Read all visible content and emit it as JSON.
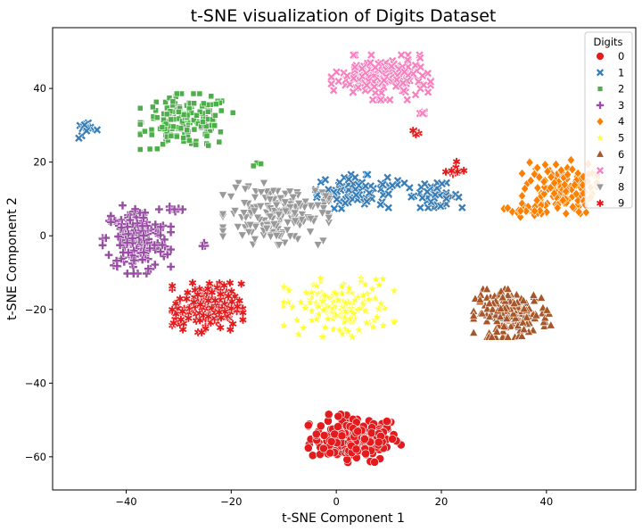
{
  "chart_data": {
    "type": "scatter",
    "title": "t-SNE visualization of Digits Dataset",
    "xlabel": "t-SNE Component 1",
    "ylabel": "t-SNE Component 2",
    "xlim": [
      -54,
      57
    ],
    "ylim": [
      -69,
      56.5
    ],
    "xticks": [
      -40,
      -20,
      0,
      20,
      40
    ],
    "yticks": [
      -60,
      -40,
      -20,
      0,
      20,
      40
    ],
    "grid": false,
    "legend": {
      "title": "Digits",
      "position": "top-right"
    },
    "series": [
      {
        "name": "0",
        "color": "#e41a1c",
        "marker": "circle",
        "clusters": [
          {
            "cx": 3.5,
            "cy": -55,
            "sx": 4.2,
            "sy": 3.1,
            "n": 180
          }
        ]
      },
      {
        "name": "1",
        "color": "#377eb8",
        "marker": "x",
        "clusters": [
          {
            "cx": 3,
            "cy": 12,
            "sx": 3.3,
            "sy": 2.2,
            "n": 90
          },
          {
            "cx": 18.5,
            "cy": 11,
            "sx": 2.6,
            "sy": 1.6,
            "n": 45
          },
          {
            "cx": -47.5,
            "cy": 28.5,
            "sx": 1.1,
            "sy": 1.1,
            "n": 14
          },
          {
            "cx": 12,
            "cy": 14.5,
            "sx": 0.9,
            "sy": 0.7,
            "n": 5
          }
        ]
      },
      {
        "name": "2",
        "color": "#4daf4a",
        "marker": "square",
        "clusters": [
          {
            "cx": -28.5,
            "cy": 31,
            "sx": 4.2,
            "sy": 3.6,
            "n": 170
          },
          {
            "cx": -14.5,
            "cy": 19.5,
            "sx": 0.9,
            "sy": 0.4,
            "n": 4
          }
        ]
      },
      {
        "name": "3",
        "color": "#984ea3",
        "marker": "plus",
        "clusters": [
          {
            "cx": -38,
            "cy": -1,
            "sx": 3.1,
            "sy": 4.4,
            "n": 170
          },
          {
            "cx": -31,
            "cy": 7,
            "sx": 1.3,
            "sy": 0.7,
            "n": 8
          },
          {
            "cx": -25.5,
            "cy": -3,
            "sx": 0.6,
            "sy": 0.6,
            "n": 3
          }
        ]
      },
      {
        "name": "4",
        "color": "#ff7f00",
        "marker": "diamond",
        "clusters": [
          {
            "cx": 42.5,
            "cy": 13,
            "sx": 3.4,
            "sy": 3.6,
            "n": 130
          },
          {
            "cx": 36,
            "cy": 7,
            "sx": 2.1,
            "sy": 0.9,
            "n": 18
          }
        ]
      },
      {
        "name": "5",
        "color": "#ffff33",
        "marker": "star",
        "clusters": [
          {
            "cx": 0.5,
            "cy": -19.5,
            "sx": 5,
            "sy": 3.8,
            "n": 150
          }
        ]
      },
      {
        "name": "6",
        "color": "#a65628",
        "marker": "triangle-up",
        "clusters": [
          {
            "cx": 33.5,
            "cy": -21,
            "sx": 3.5,
            "sy": 3.1,
            "n": 175
          }
        ]
      },
      {
        "name": "7",
        "color": "#f781bf",
        "marker": "x",
        "clusters": [
          {
            "cx": 8.5,
            "cy": 43,
            "sx": 4.5,
            "sy": 2.9,
            "n": 170
          },
          {
            "cx": 16.5,
            "cy": 33,
            "sx": 0.8,
            "sy": 0.3,
            "n": 5
          }
        ]
      },
      {
        "name": "8",
        "color": "#999999",
        "marker": "triangle-down",
        "clusters": [
          {
            "cx": -11.5,
            "cy": 6,
            "sx": 4.8,
            "sy": 4,
            "n": 170
          }
        ]
      },
      {
        "name": "9",
        "color": "#e41a1c",
        "marker": "asterisk",
        "clusters": [
          {
            "cx": -24.5,
            "cy": -19.5,
            "sx": 3.2,
            "sy": 3.2,
            "n": 160
          },
          {
            "cx": 22.5,
            "cy": 18,
            "sx": 0.9,
            "sy": 1,
            "n": 10
          },
          {
            "cx": 15,
            "cy": 28,
            "sx": 0.4,
            "sy": 0.6,
            "n": 4
          }
        ]
      }
    ]
  }
}
